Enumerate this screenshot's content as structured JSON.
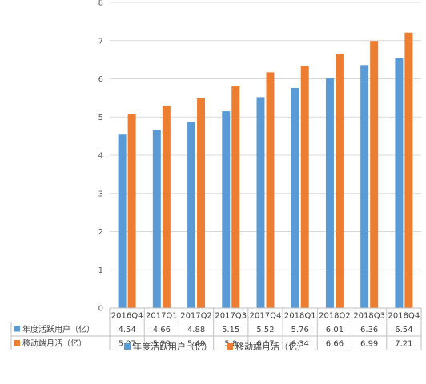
{
  "chart_data": {
    "type": "bar",
    "title": "",
    "xlabel": "",
    "ylabel": "",
    "ylim": [
      0,
      8
    ],
    "yticks": [
      0,
      1,
      2,
      3,
      4,
      5,
      6,
      7,
      8
    ],
    "grid": true,
    "legend_position": "bottom",
    "data_table": true,
    "categories": [
      "2016Q4",
      "2017Q1",
      "2017Q2",
      "2017Q3",
      "2017Q4",
      "2018Q1",
      "2018Q2",
      "2018Q3",
      "2018Q4"
    ],
    "series": [
      {
        "name": "年度活跃用户（亿）",
        "color": "#5B9BD5",
        "values": [
          4.54,
          4.66,
          4.88,
          5.15,
          5.52,
          5.76,
          6.01,
          6.36,
          6.54
        ],
        "labels": [
          "4.54",
          "4.66",
          "4.88",
          "5.15",
          "5.52",
          "5.76",
          "6.01",
          "6.36",
          "6.54"
        ]
      },
      {
        "name": "移动端月活（亿）",
        "color": "#ED7D31",
        "values": [
          5.07,
          5.29,
          5.49,
          5.8,
          6.17,
          6.34,
          6.66,
          6.99,
          7.21
        ],
        "labels": [
          "5.07",
          "5.29",
          "5.49",
          "5.8",
          "6.17",
          "6.34",
          "6.66",
          "6.99",
          "7.21"
        ]
      }
    ]
  }
}
